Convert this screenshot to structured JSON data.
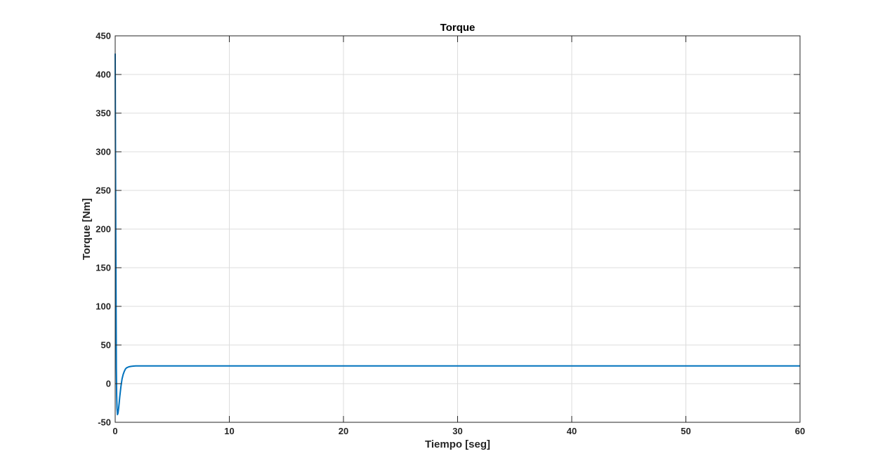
{
  "chart_data": {
    "type": "line",
    "title": "Torque",
    "xlabel": "Tiempo [seg]",
    "ylabel": "Torque [Nm]",
    "xlim": [
      0,
      60
    ],
    "ylim": [
      -50,
      450
    ],
    "xticks": [
      "0",
      "10",
      "20",
      "30",
      "40",
      "50",
      "60"
    ],
    "yticks": [
      "-50",
      "0",
      "50",
      "100",
      "150",
      "200",
      "250",
      "300",
      "350",
      "400",
      "450"
    ],
    "grid": true,
    "series": [
      {
        "color": "#0072BD",
        "x": [
          0,
          0.02,
          0.05,
          0.08,
          0.1,
          0.13,
          0.16,
          0.2,
          0.25,
          0.3,
          0.35,
          0.4,
          0.5,
          0.6,
          0.7,
          0.8,
          0.9,
          1.0,
          1.2,
          1.4,
          1.6,
          1.8,
          2.0,
          3,
          5,
          10,
          20,
          30,
          40,
          50,
          60
        ],
        "y": [
          427,
          330,
          200,
          90,
          20,
          -15,
          -32,
          -40,
          -38,
          -32,
          -25,
          -17,
          -4,
          6,
          12,
          16,
          19,
          20.5,
          21.8,
          22.4,
          22.7,
          22.9,
          23,
          23,
          23,
          23,
          23,
          23,
          23,
          23,
          23
        ]
      }
    ]
  }
}
